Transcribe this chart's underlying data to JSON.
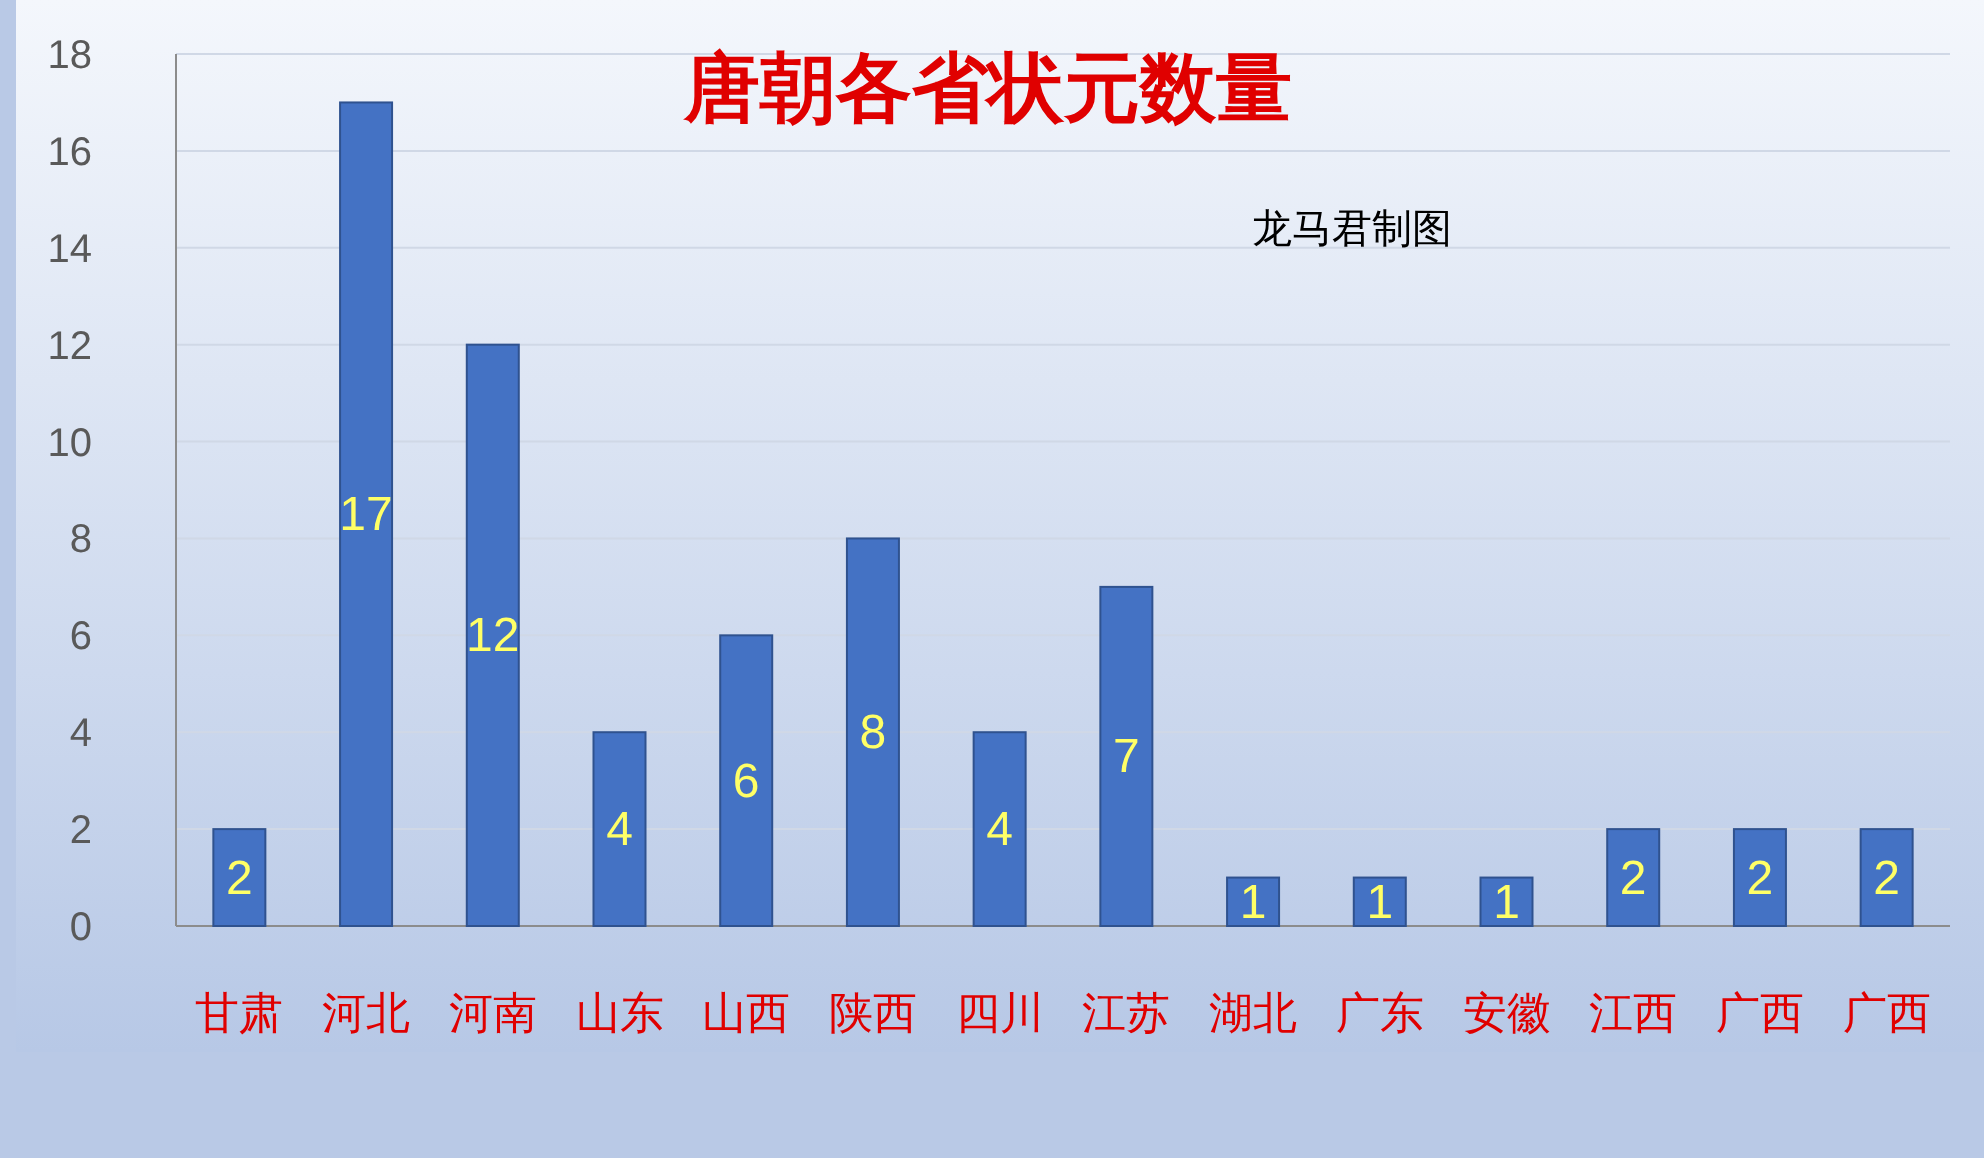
{
  "chart_data": {
    "type": "bar",
    "title": "唐朝各省状元数量",
    "annotations": [
      "龙马君制图"
    ],
    "categories": [
      "甘肃",
      "河北",
      "河南",
      "山东",
      "山西",
      "陕西",
      "四川",
      "江苏",
      "湖北",
      "广东",
      "安徽",
      "江西",
      "广西",
      "广西"
    ],
    "values": [
      2,
      17,
      12,
      4,
      6,
      8,
      4,
      7,
      1,
      1,
      1,
      2,
      2,
      2
    ],
    "color": "#4472c4",
    "ylim": [
      0,
      18
    ],
    "yticks": [
      0,
      2,
      4,
      6,
      8,
      10,
      12,
      14,
      16,
      18
    ],
    "grid": "y",
    "data_labels": true
  }
}
